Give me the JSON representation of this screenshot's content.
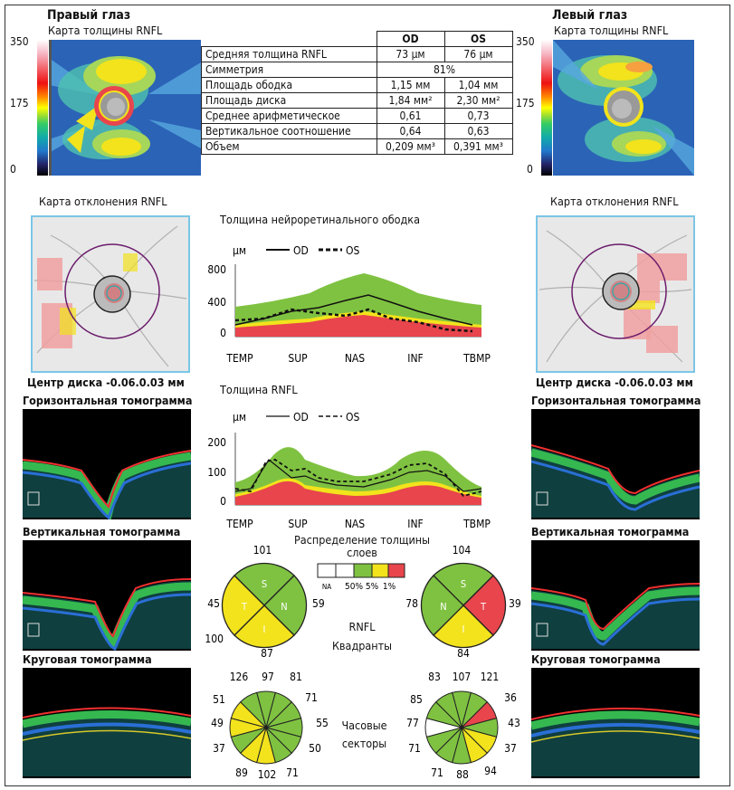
{
  "right_eye": {
    "title": "Правый глаз",
    "map_title": "Карта толщины RNFL",
    "scale": [
      "350",
      "175",
      "0"
    ],
    "deviation_title": "Карта отклонения RNFL",
    "disc_center": "Центр диска -0.06.0.03 мм",
    "h_tomo": "Горизонтальная томограмма",
    "v_tomo": "Вертикальная томограмма",
    "c_tomo": "Круговая томограмма",
    "quadrants": {
      "top": "101",
      "left": "45",
      "right": "59",
      "bottom_left": "100",
      "bottom": "87",
      "S": "S",
      "N": "N",
      "I": "I",
      "T": "T"
    },
    "clock": [
      "126",
      "97",
      "81",
      "71",
      "55",
      "50",
      "71",
      "102",
      "89",
      "37",
      "49",
      "51"
    ]
  },
  "left_eye": {
    "title": "Левый глаз",
    "map_title": "Карта толщины RNFL",
    "scale": [
      "350",
      "175",
      "0"
    ],
    "deviation_title": "Карта отклонения RNFL",
    "disc_center": "Центр диска -0.06.0.03 мм",
    "h_tomo": "Горизонтальная томограмма",
    "v_tomo": "Вертикальная томограмма",
    "c_tomo": "Круговая томограмма",
    "quadrants": {
      "top": "104",
      "left": "78",
      "right": "39",
      "bottom": "84",
      "S": "S",
      "N": "N",
      "I": "I",
      "T": "T"
    },
    "clock": [
      "107",
      "121",
      "36",
      "43",
      "37",
      "94",
      "88",
      "71",
      "71",
      "77",
      "85",
      "83"
    ]
  },
  "table": {
    "head": [
      "OD",
      "OS"
    ],
    "rows": [
      {
        "label": "Средняя толщина RNFL",
        "od": "73 μм",
        "os": "76 μм"
      },
      {
        "label": "Симметрия",
        "both": "81%"
      },
      {
        "label": "Площадь ободка",
        "od": "1,15 мм",
        "os": "1,04 мм"
      },
      {
        "label": "Площадь диска",
        "od": "1,84 мм²",
        "os": "2,30 мм²"
      },
      {
        "label": "Среднее арифметическое",
        "od": "0,61",
        "os": "0,73"
      },
      {
        "label": "Вертикальное соотношение",
        "od": "0,64",
        "os": "0,63"
      },
      {
        "label": "Объем",
        "od": "0,209 мм³",
        "os": "0,391 мм³"
      }
    ]
  },
  "chart_rim": {
    "title": "Толщина нейроретинального ободка",
    "unit": "μм",
    "legend": [
      "OD",
      "OS"
    ],
    "yticks": [
      "800",
      "400",
      "0"
    ],
    "xticks": [
      "TEMP",
      "SUP",
      "NAS",
      "INF",
      "TBMP"
    ]
  },
  "chart_rnfl": {
    "title": "Толщина RNFL",
    "unit": "μм",
    "legend": [
      "OD",
      "OS"
    ],
    "yticks": [
      "200",
      "100",
      "0"
    ],
    "xticks": [
      "TEMP",
      "SUP",
      "NAS",
      "INF",
      "TBMP"
    ]
  },
  "distribution": {
    "title": "Распределение толщины слоев",
    "na": "NA",
    "levels": [
      "50%",
      "5%",
      "1%"
    ]
  },
  "center_labels": {
    "rnfl": "RNFL",
    "quadrants": "Квадранты",
    "clock": "Часовые",
    "sectors": "секторы"
  },
  "colors": {
    "green": "#7fc241",
    "yellow": "#f2e31c",
    "red": "#e8454c",
    "map_blue": "#2b6ab8",
    "frame_blue": "#7bc6e6"
  }
}
